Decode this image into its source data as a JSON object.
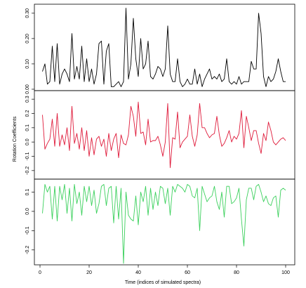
{
  "chart_data": [
    {
      "type": "line",
      "panel": "top",
      "color": "#000000",
      "xlim": [
        0,
        100
      ],
      "ylim": [
        0.0,
        0.33
      ],
      "yticks": [
        0.0,
        0.1,
        0.2,
        0.3
      ],
      "ytick_labels": [
        "0.00",
        "0.10",
        "0.20",
        "0.30"
      ],
      "x": [
        1,
        2,
        3,
        4,
        5,
        6,
        7,
        8,
        9,
        10,
        11,
        12,
        13,
        14,
        15,
        16,
        17,
        18,
        19,
        20,
        21,
        22,
        23,
        24,
        25,
        26,
        27,
        28,
        29,
        30,
        31,
        32,
        33,
        34,
        35,
        36,
        37,
        38,
        39,
        40,
        41,
        42,
        43,
        44,
        45,
        46,
        47,
        48,
        49,
        50,
        51,
        52,
        53,
        54,
        55,
        56,
        57,
        58,
        59,
        60,
        61,
        62,
        63,
        64,
        65,
        66,
        67,
        68,
        69,
        70,
        71,
        72,
        73,
        74,
        75,
        76,
        77,
        78,
        79,
        80,
        81,
        82,
        83,
        84,
        85,
        86,
        87,
        88,
        89,
        90,
        91,
        92,
        93,
        94,
        95,
        96,
        97,
        98,
        99,
        100
      ],
      "values": [
        0.07,
        0.1,
        0.02,
        0.03,
        0.17,
        0.03,
        0.18,
        0.02,
        0.06,
        0.08,
        0.06,
        0.03,
        0.22,
        0.04,
        0.09,
        0.04,
        0.17,
        0.03,
        0.12,
        0.03,
        0.08,
        0.02,
        0.06,
        0.18,
        0.19,
        0.02,
        0.15,
        0.18,
        0.01,
        0.01,
        0.02,
        0.03,
        0.01,
        0.03,
        0.32,
        0.04,
        0.1,
        0.28,
        0.12,
        0.05,
        0.2,
        0.08,
        0.1,
        0.19,
        0.05,
        0.04,
        0.06,
        0.09,
        0.08,
        0.05,
        0.08,
        0.25,
        0.06,
        0.03,
        0.03,
        0.12,
        0.03,
        0.01,
        0.02,
        0.04,
        0.02,
        0.02,
        0.08,
        0.02,
        0.06,
        0.01,
        0.04,
        0.06,
        0.08,
        0.04,
        0.05,
        0.04,
        0.06,
        0.03,
        0.04,
        0.12,
        0.03,
        0.02,
        0.03,
        0.02,
        0.05,
        0.02,
        0.03,
        0.03,
        0.03,
        0.11,
        0.08,
        0.08,
        0.3,
        0.22,
        0.05,
        0.01,
        0.05,
        0.03,
        0.04,
        0.07,
        0.12,
        0.07,
        0.03,
        0.03
      ]
    },
    {
      "type": "line",
      "panel": "middle",
      "color": "#df1a3a",
      "xlim": [
        0,
        100
      ],
      "ylim": [
        -0.25,
        0.35
      ],
      "yticks": [
        -0.2,
        -0.1,
        0.0,
        0.1,
        0.2,
        0.3
      ],
      "ytick_labels": [
        "-0.2",
        "-0.1",
        "0.0",
        "0.1",
        "0.2",
        "0.3"
      ],
      "x": [
        1,
        2,
        3,
        4,
        5,
        6,
        7,
        8,
        9,
        10,
        11,
        12,
        13,
        14,
        15,
        16,
        17,
        18,
        19,
        20,
        21,
        22,
        23,
        24,
        25,
        26,
        27,
        28,
        29,
        30,
        31,
        32,
        33,
        34,
        35,
        36,
        37,
        38,
        39,
        40,
        41,
        42,
        43,
        44,
        45,
        46,
        47,
        48,
        49,
        50,
        51,
        52,
        53,
        54,
        55,
        56,
        57,
        58,
        59,
        60,
        61,
        62,
        63,
        64,
        65,
        66,
        67,
        68,
        69,
        70,
        71,
        72,
        73,
        74,
        75,
        76,
        77,
        78,
        79,
        80,
        81,
        82,
        83,
        84,
        85,
        86,
        87,
        88,
        89,
        90,
        91,
        92,
        93,
        94,
        95,
        96,
        97,
        98,
        99,
        100
      ],
      "values": [
        0.19,
        -0.05,
        -0.01,
        0.02,
        0.16,
        -0.03,
        0.2,
        -0.03,
        0.05,
        -0.02,
        0.1,
        -0.06,
        0.25,
        -0.01,
        0.06,
        -0.05,
        0.1,
        -0.06,
        0.08,
        -0.1,
        0.03,
        -0.09,
        0.02,
        0.04,
        -0.03,
        0.02,
        -0.1,
        0.06,
        -0.06,
        0.02,
        0.06,
        -0.11,
        0.05,
        -0.01,
        -0.02,
        0.05,
        0.25,
        0.18,
        0.04,
        0.28,
        0.06,
        0.07,
        -0.02,
        0.16,
        0.0,
        0.01,
        0.01,
        0.04,
        -0.02,
        -0.1,
        0.0,
        0.27,
        -0.18,
        0.03,
        0.02,
        0.21,
        -0.04,
        0.0,
        0.02,
        0.04,
        0.19,
        0.04,
        -0.03,
        0.05,
        0.27,
        0.1,
        0.1,
        0.06,
        0.03,
        0.05,
        0.06,
        0.18,
        0.05,
        -0.03,
        -0.01,
        0.03,
        0.08,
        0.0,
        0.04,
        0.02,
        0.06,
        0.22,
        -0.04,
        0.18,
        0.1,
        0.01,
        0.08,
        0.08,
        -0.01,
        -0.08,
        0.06,
        0.01,
        0.14,
        0.08,
        0.0,
        -0.02,
        0.0,
        0.02,
        0.03,
        0.01
      ]
    },
    {
      "type": "line",
      "panel": "bottom",
      "color": "#3bd05c",
      "xlim": [
        0,
        100
      ],
      "ylim": [
        -0.27,
        0.16
      ],
      "yticks": [
        -0.2,
        -0.1,
        0.0,
        0.1
      ],
      "ytick_labels": [
        "-0.2",
        "-0.1",
        "0.0",
        "0.1"
      ],
      "x": [
        1,
        2,
        3,
        4,
        5,
        6,
        7,
        8,
        9,
        10,
        11,
        12,
        13,
        14,
        15,
        16,
        17,
        18,
        19,
        20,
        21,
        22,
        23,
        24,
        25,
        26,
        27,
        28,
        29,
        30,
        31,
        32,
        33,
        34,
        35,
        36,
        37,
        38,
        39,
        40,
        41,
        42,
        43,
        44,
        45,
        46,
        47,
        48,
        49,
        50,
        51,
        52,
        53,
        54,
        55,
        56,
        57,
        58,
        59,
        60,
        61,
        62,
        63,
        64,
        65,
        66,
        67,
        68,
        69,
        70,
        71,
        72,
        73,
        74,
        75,
        76,
        77,
        78,
        79,
        80,
        81,
        82,
        83,
        84,
        85,
        86,
        87,
        88,
        89,
        90,
        91,
        92,
        93,
        94,
        95,
        96,
        97,
        98,
        99,
        100
      ],
      "values": [
        -0.01,
        0.14,
        0.1,
        0.13,
        -0.04,
        0.13,
        -0.05,
        0.13,
        0.06,
        0.14,
        -0.01,
        0.12,
        -0.05,
        0.14,
        0.04,
        0.1,
        -0.02,
        0.13,
        0.05,
        0.13,
        0.03,
        0.11,
        -0.01,
        0.04,
        0.13,
        0.14,
        0.03,
        0.12,
        0.13,
        -0.06,
        0.13,
        -0.04,
        0.12,
        -0.27,
        0.1,
        -0.02,
        -0.04,
        -0.05,
        0.08,
        -0.07,
        0.1,
        0.05,
        0.13,
        -0.02,
        0.12,
        0.01,
        0.1,
        0.03,
        0.13,
        0.12,
        0.04,
        0.12,
        -0.02,
        0.13,
        0.1,
        0.14,
        0.13,
        0.12,
        0.1,
        0.14,
        0.13,
        0.08,
        0.07,
        0.12,
        -0.1,
        0.13,
        0.09,
        0.05,
        0.07,
        0.08,
        0.13,
        0.05,
        0.01,
        0.1,
        -0.03,
        0.13,
        0.13,
        0.04,
        0.05,
        0.07,
        0.12,
        -0.04,
        -0.18,
        0.06,
        0.12,
        0.12,
        0.06,
        0.13,
        0.14,
        0.1,
        0.05,
        0.08,
        0.04,
        0.03,
        0.07,
        0.08,
        -0.03,
        0.11,
        0.12,
        0.11
      ]
    }
  ],
  "axes": {
    "xticks": [
      0,
      20,
      40,
      60,
      80,
      100
    ],
    "xtick_labels": [
      "0",
      "20",
      "40",
      "60",
      "80",
      "100"
    ],
    "xlabel": "Time (indices of simulated spectra)",
    "ylabel": "Rotation Coefficients"
  }
}
